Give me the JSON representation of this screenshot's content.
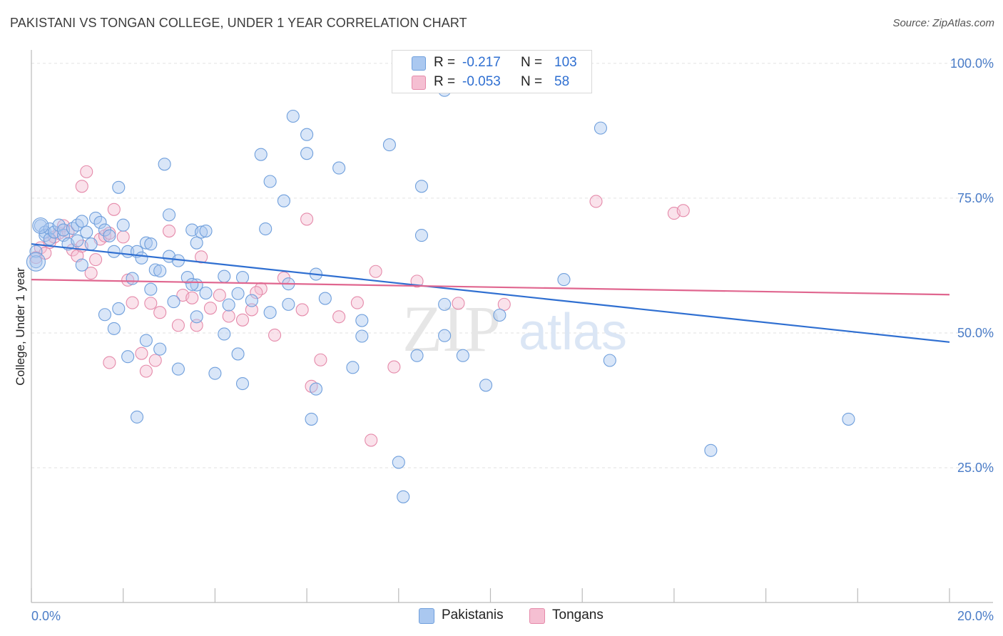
{
  "title": "PAKISTANI VS TONGAN COLLEGE, UNDER 1 YEAR CORRELATION CHART",
  "source": "Source: ZipAtlas.com",
  "watermark": {
    "zip": "ZIP",
    "atlas": "atlas"
  },
  "legend": {
    "rows": [
      {
        "r_label": "R =",
        "r_value": "-0.217",
        "n_label": "N =",
        "n_value": "103"
      },
      {
        "r_label": "R =",
        "r_value": "-0.053",
        "n_label": "N =",
        "n_value": "58"
      }
    ]
  },
  "bottom_legend": {
    "pakistanis": "Pakistanis",
    "tongans": "Tongans"
  },
  "colors": {
    "blue_fill": "#aac8f0",
    "blue_stroke": "#6f9fdc",
    "blue_line": "#2f6fd1",
    "pink_fill": "#f5bfd2",
    "pink_stroke": "#e58aaa",
    "pink_line": "#e0668f",
    "tick_text": "#4a7cc7",
    "grid": "#e2e2e2"
  },
  "chart_data": {
    "type": "scatter",
    "title": "PAKISTANI VS TONGAN COLLEGE, UNDER 1 YEAR CORRELATION CHART",
    "xlabel": "",
    "ylabel": "College, Under 1 year",
    "xlim": [
      0,
      20
    ],
    "ylim": [
      0,
      102.5
    ],
    "x_tick_labels": [
      "0.0%",
      "20.0%"
    ],
    "y_ticks": [
      25,
      50,
      75,
      100
    ],
    "y_tick_labels": [
      "25.0%",
      "50.0%",
      "75.0%",
      "100.0%"
    ],
    "grid": "horizontal dashed",
    "legend_placement": "top-center",
    "series": [
      {
        "name": "Pakistanis",
        "r": -0.217,
        "n": 103,
        "trend": {
          "x": [
            0,
            20
          ],
          "y": [
            66.5,
            48.3
          ]
        },
        "points": [
          [
            0.1,
            65.1
          ],
          [
            0.1,
            63.2
          ],
          [
            0.2,
            69.9
          ],
          [
            0.3,
            68.7
          ],
          [
            0.3,
            68.1
          ],
          [
            0.4,
            69.3
          ],
          [
            0.4,
            67.4
          ],
          [
            0.5,
            68.7
          ],
          [
            0.6,
            70.0
          ],
          [
            0.7,
            68.1
          ],
          [
            0.7,
            69.1
          ],
          [
            0.8,
            66.5
          ],
          [
            0.9,
            69.4
          ],
          [
            1.0,
            67.1
          ],
          [
            1.0,
            70.0
          ],
          [
            1.1,
            70.7
          ],
          [
            1.2,
            68.7
          ],
          [
            1.3,
            66.5
          ],
          [
            1.4,
            71.3
          ],
          [
            1.5,
            70.5
          ],
          [
            1.6,
            69.1
          ],
          [
            1.7,
            68.0
          ],
          [
            1.8,
            65.1
          ],
          [
            1.9,
            77.0
          ],
          [
            2.0,
            70.0
          ],
          [
            2.1,
            65.1
          ],
          [
            2.3,
            65.1
          ],
          [
            2.2,
            60.1
          ],
          [
            2.4,
            63.9
          ],
          [
            2.5,
            66.7
          ],
          [
            2.6,
            66.5
          ],
          [
            2.7,
            61.7
          ],
          [
            2.8,
            61.5
          ],
          [
            2.9,
            81.3
          ],
          [
            3.0,
            64.2
          ],
          [
            3.0,
            71.9
          ],
          [
            3.2,
            63.4
          ],
          [
            3.4,
            60.3
          ],
          [
            3.5,
            69.1
          ],
          [
            3.6,
            66.7
          ],
          [
            3.7,
            68.7
          ],
          [
            3.8,
            68.9
          ],
          [
            3.6,
            58.9
          ],
          [
            3.8,
            57.4
          ],
          [
            4.2,
            60.5
          ],
          [
            4.3,
            55.2
          ],
          [
            4.2,
            49.8
          ],
          [
            4.6,
            60.3
          ],
          [
            4.5,
            57.3
          ],
          [
            5.0,
            83.1
          ],
          [
            5.1,
            69.3
          ],
          [
            5.2,
            78.1
          ],
          [
            5.5,
            74.5
          ],
          [
            5.6,
            59.1
          ],
          [
            5.7,
            90.2
          ],
          [
            6.0,
            83.3
          ],
          [
            6.0,
            86.8
          ],
          [
            6.2,
            60.9
          ],
          [
            6.4,
            56.4
          ],
          [
            6.7,
            80.6
          ],
          [
            7.0,
            43.6
          ],
          [
            7.2,
            52.3
          ],
          [
            7.8,
            84.9
          ],
          [
            8.1,
            98.7
          ],
          [
            8.5,
            77.2
          ],
          [
            8.5,
            68.1
          ],
          [
            8.4,
            45.8
          ],
          [
            9.0,
            95.0
          ],
          [
            9.4,
            45.8
          ],
          [
            9.9,
            40.3
          ],
          [
            11.3,
            100.0
          ],
          [
            11.6,
            59.9
          ],
          [
            12.4,
            88.0
          ],
          [
            12.6,
            44.9
          ],
          [
            14.8,
            28.2
          ],
          [
            17.8,
            34.0
          ],
          [
            8.0,
            26.0
          ],
          [
            8.1,
            19.6
          ],
          [
            6.1,
            34.0
          ],
          [
            2.3,
            34.4
          ],
          [
            1.1,
            62.6
          ],
          [
            1.6,
            53.4
          ],
          [
            2.5,
            48.6
          ],
          [
            2.8,
            47.0
          ],
          [
            3.1,
            55.8
          ],
          [
            3.2,
            43.3
          ],
          [
            3.5,
            59.0
          ],
          [
            3.6,
            53.0
          ],
          [
            4.0,
            42.5
          ],
          [
            4.5,
            46.1
          ],
          [
            4.6,
            40.6
          ],
          [
            4.8,
            56.0
          ],
          [
            5.2,
            53.8
          ],
          [
            5.6,
            55.3
          ],
          [
            6.2,
            39.6
          ],
          [
            7.2,
            49.4
          ],
          [
            9.0,
            55.3
          ],
          [
            9.0,
            49.5
          ],
          [
            10.2,
            53.3
          ],
          [
            2.1,
            45.6
          ],
          [
            1.8,
            50.8
          ],
          [
            1.9,
            54.5
          ],
          [
            2.6,
            58.1
          ]
        ]
      },
      {
        "name": "Tongans",
        "r": -0.053,
        "n": 58,
        "trend": {
          "x": [
            0,
            20
          ],
          "y": [
            59.9,
            57.1
          ]
        },
        "points": [
          [
            0.1,
            64.0
          ],
          [
            0.2,
            65.8
          ],
          [
            0.3,
            64.8
          ],
          [
            0.4,
            66.8
          ],
          [
            0.5,
            67.8
          ],
          [
            0.6,
            68.5
          ],
          [
            0.7,
            69.9
          ],
          [
            0.8,
            68.8
          ],
          [
            0.9,
            65.4
          ],
          [
            1.0,
            64.3
          ],
          [
            1.1,
            66.1
          ],
          [
            1.2,
            79.9
          ],
          [
            1.1,
            77.2
          ],
          [
            1.3,
            61.1
          ],
          [
            1.4,
            63.6
          ],
          [
            1.5,
            67.4
          ],
          [
            1.6,
            68.0
          ],
          [
            1.7,
            68.5
          ],
          [
            1.8,
            72.9
          ],
          [
            2.0,
            67.8
          ],
          [
            2.1,
            59.8
          ],
          [
            2.2,
            55.6
          ],
          [
            2.4,
            46.2
          ],
          [
            2.5,
            42.9
          ],
          [
            2.6,
            55.5
          ],
          [
            2.8,
            53.8
          ],
          [
            3.0,
            68.9
          ],
          [
            3.2,
            51.4
          ],
          [
            3.3,
            57.0
          ],
          [
            3.5,
            56.5
          ],
          [
            3.7,
            64.1
          ],
          [
            3.9,
            54.6
          ],
          [
            4.1,
            57.0
          ],
          [
            4.3,
            53.1
          ],
          [
            4.6,
            52.4
          ],
          [
            4.8,
            54.3
          ],
          [
            5.0,
            58.2
          ],
          [
            5.3,
            49.6
          ],
          [
            5.5,
            60.2
          ],
          [
            5.9,
            54.3
          ],
          [
            6.0,
            71.1
          ],
          [
            6.3,
            45.0
          ],
          [
            6.7,
            53.0
          ],
          [
            7.1,
            55.6
          ],
          [
            7.5,
            61.4
          ],
          [
            7.9,
            43.7
          ],
          [
            8.4,
            59.6
          ],
          [
            9.3,
            55.5
          ],
          [
            10.3,
            55.3
          ],
          [
            12.3,
            74.4
          ],
          [
            14.0,
            72.2
          ],
          [
            14.2,
            72.7
          ],
          [
            7.4,
            30.1
          ],
          [
            6.1,
            40.1
          ],
          [
            4.9,
            57.5
          ],
          [
            2.7,
            44.9
          ],
          [
            1.7,
            44.5
          ],
          [
            3.6,
            51.4
          ]
        ]
      }
    ]
  }
}
